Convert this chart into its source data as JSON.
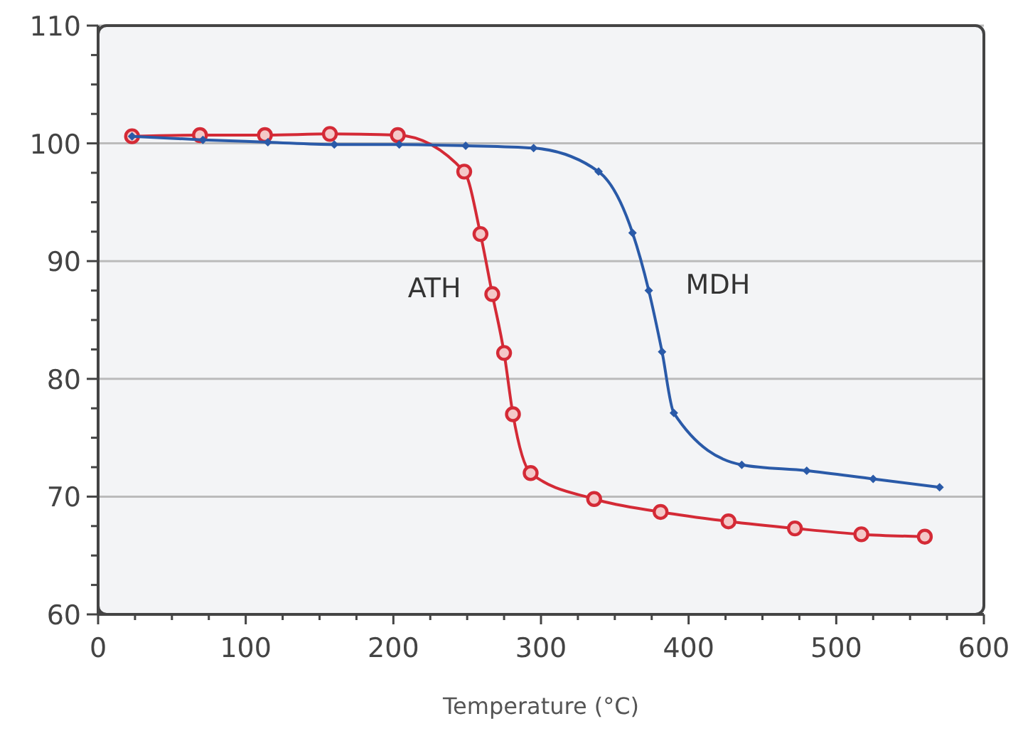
{
  "chart_data": {
    "type": "line",
    "xlabel": "Temperature (°C)",
    "xlim": [
      0,
      600
    ],
    "ylim": [
      60,
      110
    ],
    "xticks": [
      0,
      {
        "value": 25,
        "label": null
      },
      {
        "value": 50,
        "label": null
      },
      {
        "value": 75,
        "label": null
      },
      100,
      {
        "value": 125,
        "label": null
      },
      {
        "value": 150,
        "label": null
      },
      {
        "value": 175,
        "label": null
      },
      200,
      {
        "value": 225,
        "label": null
      },
      {
        "value": 250,
        "label": null
      },
      {
        "value": 275,
        "label": null
      },
      300,
      {
        "value": 325,
        "label": null
      },
      {
        "value": 350,
        "label": null
      },
      {
        "value": 375,
        "label": null
      },
      400,
      {
        "value": 425,
        "label": null
      },
      {
        "value": 450,
        "label": null
      },
      {
        "value": 475,
        "label": null
      },
      500,
      {
        "value": 525,
        "label": null
      },
      {
        "value": 550,
        "label": null
      },
      {
        "value": 575,
        "label": null
      },
      600
    ],
    "yticks": [
      60,
      {
        "value": 62.5,
        "label": null
      },
      {
        "value": 65,
        "label": null
      },
      {
        "value": 67.5,
        "label": null
      },
      70,
      {
        "value": 72.5,
        "label": null
      },
      {
        "value": 75,
        "label": null
      },
      {
        "value": 77.5,
        "label": null
      },
      80,
      {
        "value": 82.5,
        "label": null
      },
      {
        "value": 85,
        "label": null
      },
      {
        "value": 87.5,
        "label": null
      },
      90,
      {
        "value": 92.5,
        "label": null
      },
      {
        "value": 95,
        "label": null
      },
      {
        "value": 97.5,
        "label": null
      },
      100,
      {
        "value": 102.5,
        "label": null
      },
      {
        "value": 105,
        "label": null
      },
      {
        "value": 107.5,
        "label": null
      },
      110
    ],
    "grid": "y",
    "line_style": "solid",
    "series": [
      {
        "name": "ATH",
        "color": "#d42a36",
        "marker": "circle",
        "x": [
          23,
          69,
          113,
          157,
          203,
          248,
          259,
          267,
          275,
          281,
          293,
          336,
          381,
          427,
          472,
          517,
          560
        ],
        "values": [
          100.6,
          100.7,
          100.7,
          100.8,
          100.7,
          97.6,
          92.3,
          87.2,
          82.2,
          77.0,
          72.0,
          69.8,
          68.7,
          67.9,
          67.3,
          66.8,
          66.6
        ]
      },
      {
        "name": "MDH",
        "color": "#2a5aa8",
        "marker": "diamond",
        "x": [
          23,
          71,
          115,
          160,
          204,
          249,
          295,
          339,
          362,
          373,
          382,
          390,
          436,
          480,
          525,
          570
        ],
        "values": [
          100.6,
          100.3,
          100.1,
          99.9,
          99.9,
          99.8,
          99.6,
          97.6,
          92.4,
          87.5,
          82.3,
          77.1,
          72.7,
          72.2,
          71.5,
          70.8
        ]
      }
    ]
  }
}
